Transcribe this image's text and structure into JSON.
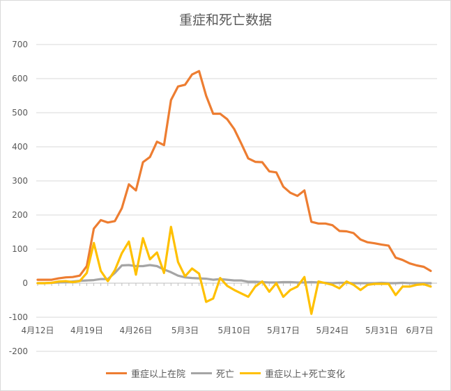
{
  "chart_data": {
    "type": "line",
    "title": "重症和死亡数据",
    "ylim": [
      -100,
      700
    ],
    "y_ticks": [
      -200,
      -100,
      0,
      100,
      200,
      300,
      400,
      500,
      600,
      700
    ],
    "x_tick_labels": [
      "4月12日",
      "4月19日",
      "4月26日",
      "5月3日",
      "5月10日",
      "5月17日",
      "5月24日",
      "5月31日",
      "6月7日"
    ],
    "legend_position": "bottom",
    "grid": true,
    "x": [
      "4/12",
      "4/13",
      "4/14",
      "4/15",
      "4/16",
      "4/17",
      "4/18",
      "4/19",
      "4/20",
      "4/21",
      "4/22",
      "4/23",
      "4/24",
      "4/25",
      "4/26",
      "4/27",
      "4/28",
      "4/29",
      "4/30",
      "5/1",
      "5/2",
      "5/3",
      "5/4",
      "5/5",
      "5/6",
      "5/7",
      "5/8",
      "5/9",
      "5/10",
      "5/11",
      "5/12",
      "5/13",
      "5/14",
      "5/15",
      "5/16",
      "5/17",
      "5/18",
      "5/19",
      "5/20",
      "5/21",
      "5/22",
      "5/23",
      "5/24",
      "5/25",
      "5/26",
      "5/27",
      "5/28",
      "5/29",
      "5/30",
      "5/31",
      "6/1",
      "6/2",
      "6/3",
      "6/4",
      "6/5",
      "6/6",
      "6/7"
    ],
    "series": [
      {
        "name": "重症以上在院",
        "color": "#ED7D31",
        "values": [
          10,
          10,
          10,
          14,
          17,
          18,
          22,
          50,
          160,
          185,
          178,
          182,
          220,
          290,
          272,
          355,
          370,
          415,
          405,
          537,
          577,
          582,
          612,
          622,
          550,
          497,
          497,
          481,
          452,
          410,
          366,
          356,
          355,
          328,
          325,
          283,
          265,
          256,
          272,
          180,
          175,
          175,
          170,
          153,
          152,
          147,
          128,
          120,
          117,
          113,
          110,
          75,
          68,
          58,
          52,
          48,
          36
        ]
      },
      {
        "name": "死亡",
        "color": "#A5A5A5",
        "values": [
          0,
          0,
          1,
          2,
          3,
          5,
          7,
          8,
          9,
          12,
          12,
          30,
          52,
          53,
          50,
          50,
          53,
          50,
          40,
          32,
          22,
          17,
          15,
          14,
          13,
          10,
          12,
          10,
          8,
          8,
          4,
          4,
          3,
          2,
          2,
          3,
          3,
          2,
          2,
          3,
          2,
          1,
          0,
          1,
          1,
          0,
          0,
          0,
          0,
          1,
          0,
          0,
          1,
          0,
          0,
          0,
          0
        ]
      },
      {
        "name": "重症以上+死亡变化",
        "color": "#FFC000",
        "values": [
          0,
          0,
          1,
          5,
          6,
          3,
          6,
          30,
          118,
          36,
          6,
          38,
          88,
          122,
          25,
          132,
          70,
          90,
          30,
          165,
          62,
          20,
          43,
          28,
          -55,
          -45,
          15,
          -8,
          -20,
          -30,
          -40,
          -10,
          5,
          -25,
          0,
          -40,
          -20,
          -10,
          18,
          -90,
          5,
          0,
          -5,
          -15,
          5,
          -5,
          -20,
          -5,
          -2,
          -2,
          -2,
          -35,
          -10,
          -10,
          -5,
          -3,
          -10
        ]
      }
    ]
  }
}
